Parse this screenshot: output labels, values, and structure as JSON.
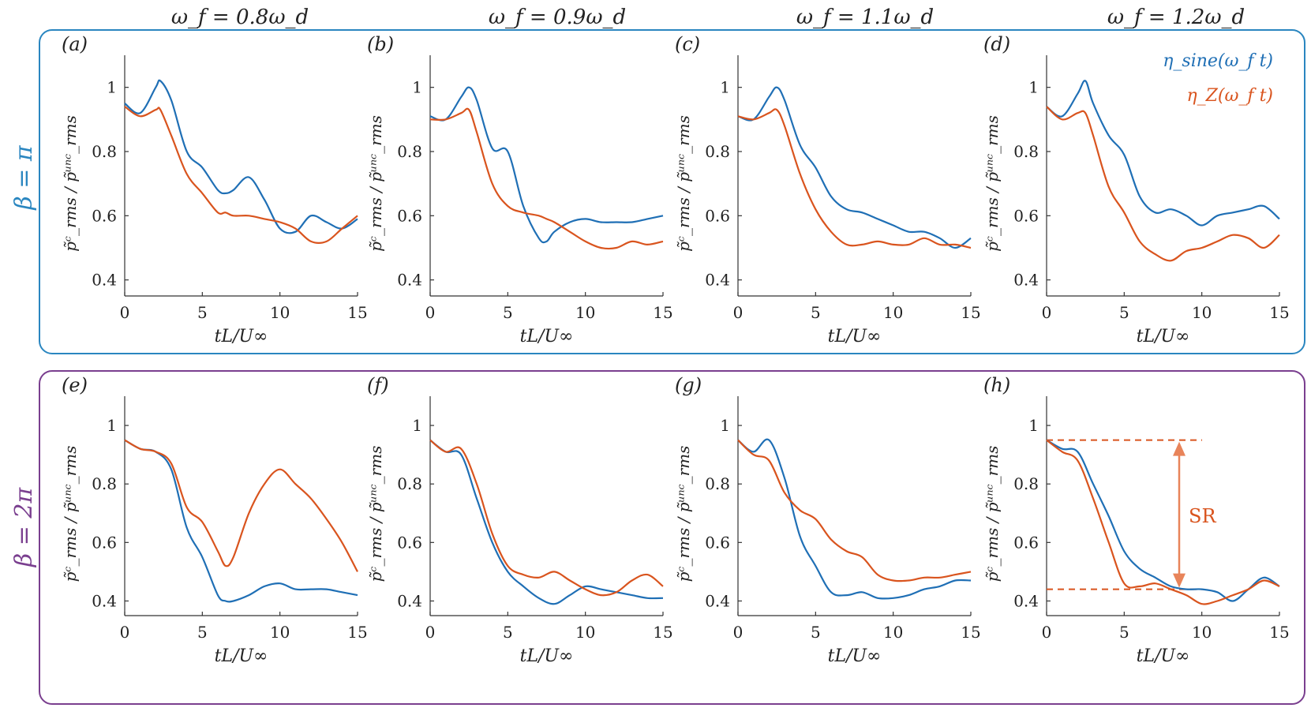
{
  "colors": {
    "row1_box": "#2a86c0",
    "row2_box": "#7a3f8f",
    "sine": "#1f6fb5",
    "zaw": "#d9541e",
    "sr_arrow": "#e8845a",
    "sr_text": "#d9541e"
  },
  "column_headers": [
    "ω_f = 0.8ω_d",
    "ω_f = 0.9ω_d",
    "ω_f = 1.1ω_d",
    "ω_f = 1.2ω_d"
  ],
  "row_labels": [
    "β = π",
    "β = 2π"
  ],
  "axes": {
    "xlabel": "tL/U∞",
    "ylabel": "p̃ᶜ_rms / p̃ᵘⁿᶜ_rms",
    "xlim": [
      0,
      15
    ],
    "ylim": [
      0.35,
      1.1
    ],
    "xticks": [
      "0",
      "5",
      "10",
      "15"
    ],
    "yticks": [
      "0.4",
      "0.6",
      "0.8",
      "1"
    ]
  },
  "legend": {
    "sine": "η_sine(ω_f t)",
    "zaw": "η_Z(ω_f t)",
    "placement": "top-right of panel (d)"
  },
  "annotation": {
    "text": "SR",
    "panel": "h",
    "upper_level": 0.95,
    "lower_level": 0.44
  },
  "chart_data": [
    {
      "type": "line",
      "panel": "(a)",
      "row": "β = π",
      "column": "ω_f = 0.8ω_d",
      "x": [
        0,
        1,
        2,
        2.3,
        3,
        4,
        5,
        6,
        6.5,
        7,
        8,
        9,
        10,
        11,
        12,
        13,
        14,
        15
      ],
      "series": [
        {
          "name": "η_sine(ω_f t)",
          "values": [
            0.95,
            0.92,
            1.0,
            1.02,
            0.96,
            0.8,
            0.75,
            0.68,
            0.67,
            0.68,
            0.72,
            0.65,
            0.56,
            0.55,
            0.6,
            0.58,
            0.56,
            0.59
          ]
        },
        {
          "name": "η_Z(ω_f t)",
          "values": [
            0.94,
            0.91,
            0.93,
            0.93,
            0.85,
            0.73,
            0.67,
            0.61,
            0.61,
            0.6,
            0.6,
            0.59,
            0.58,
            0.56,
            0.52,
            0.52,
            0.56,
            0.6
          ]
        }
      ]
    },
    {
      "type": "line",
      "panel": "(b)",
      "row": "β = π",
      "column": "ω_f = 0.9ω_d",
      "x": [
        0,
        1,
        2,
        2.5,
        3,
        4,
        5,
        6,
        7,
        7.5,
        8,
        9,
        10,
        11,
        12,
        13,
        14,
        15
      ],
      "series": [
        {
          "name": "η_sine(ω_f t)",
          "values": [
            0.91,
            0.9,
            0.97,
            1.0,
            0.96,
            0.81,
            0.8,
            0.63,
            0.53,
            0.52,
            0.55,
            0.58,
            0.59,
            0.58,
            0.58,
            0.58,
            0.59,
            0.6
          ]
        },
        {
          "name": "η_Z(ω_f t)",
          "values": [
            0.9,
            0.9,
            0.92,
            0.93,
            0.86,
            0.7,
            0.63,
            0.61,
            0.6,
            0.59,
            0.58,
            0.55,
            0.52,
            0.5,
            0.5,
            0.52,
            0.51,
            0.52
          ]
        }
      ]
    },
    {
      "type": "line",
      "panel": "(c)",
      "row": "β = π",
      "column": "ω_f = 1.1ω_d",
      "x": [
        0,
        1,
        2,
        2.5,
        3,
        4,
        5,
        6,
        7,
        8,
        9,
        10,
        11,
        12,
        13,
        14,
        15
      ],
      "series": [
        {
          "name": "η_sine(ω_f t)",
          "values": [
            0.91,
            0.9,
            0.97,
            1.0,
            0.96,
            0.82,
            0.75,
            0.66,
            0.62,
            0.61,
            0.59,
            0.57,
            0.55,
            0.55,
            0.53,
            0.5,
            0.53
          ]
        },
        {
          "name": "η_Z(ω_f t)",
          "values": [
            0.91,
            0.9,
            0.92,
            0.93,
            0.88,
            0.73,
            0.62,
            0.55,
            0.51,
            0.51,
            0.52,
            0.51,
            0.51,
            0.53,
            0.51,
            0.51,
            0.5
          ]
        }
      ]
    },
    {
      "type": "line",
      "panel": "(d)",
      "row": "β = π",
      "column": "ω_f = 1.2ω_d",
      "x": [
        0,
        1,
        2,
        2.5,
        3,
        4,
        5,
        6,
        7,
        8,
        9,
        10,
        11,
        12,
        13,
        14,
        15
      ],
      "series": [
        {
          "name": "η_sine(ω_f t)",
          "values": [
            0.94,
            0.91,
            0.98,
            1.02,
            0.95,
            0.85,
            0.79,
            0.66,
            0.61,
            0.62,
            0.6,
            0.57,
            0.6,
            0.61,
            0.62,
            0.63,
            0.59
          ]
        },
        {
          "name": "η_Z(ω_f t)",
          "values": [
            0.94,
            0.9,
            0.92,
            0.92,
            0.85,
            0.69,
            0.61,
            0.52,
            0.48,
            0.46,
            0.49,
            0.5,
            0.52,
            0.54,
            0.53,
            0.5,
            0.54
          ]
        }
      ]
    },
    {
      "type": "line",
      "panel": "(e)",
      "row": "β = 2π",
      "column": "ω_f = 0.8ω_d",
      "x": [
        0,
        1,
        2,
        3,
        4,
        5,
        6,
        6.5,
        7,
        8,
        9,
        10,
        11,
        12,
        13,
        14,
        15
      ],
      "series": [
        {
          "name": "η_sine(ω_f t)",
          "values": [
            0.95,
            0.92,
            0.91,
            0.85,
            0.65,
            0.55,
            0.42,
            0.4,
            0.4,
            0.42,
            0.45,
            0.46,
            0.44,
            0.44,
            0.44,
            0.43,
            0.42
          ]
        },
        {
          "name": "η_Z(ω_f t)",
          "values": [
            0.95,
            0.92,
            0.91,
            0.87,
            0.72,
            0.67,
            0.57,
            0.52,
            0.55,
            0.7,
            0.8,
            0.85,
            0.8,
            0.75,
            0.68,
            0.6,
            0.5
          ]
        }
      ]
    },
    {
      "type": "line",
      "panel": "(f)",
      "row": "β = 2π",
      "column": "ω_f = 0.9ω_d",
      "x": [
        0,
        1,
        2,
        3,
        4,
        5,
        6,
        7,
        8,
        9,
        10,
        11,
        12,
        13,
        14,
        15
      ],
      "series": [
        {
          "name": "η_sine(ω_f t)",
          "values": [
            0.95,
            0.91,
            0.9,
            0.75,
            0.6,
            0.5,
            0.45,
            0.41,
            0.39,
            0.42,
            0.45,
            0.44,
            0.43,
            0.42,
            0.41,
            0.41
          ]
        },
        {
          "name": "η_Z(ω_f t)",
          "values": [
            0.95,
            0.91,
            0.92,
            0.8,
            0.63,
            0.52,
            0.49,
            0.48,
            0.5,
            0.47,
            0.44,
            0.42,
            0.43,
            0.47,
            0.49,
            0.45
          ]
        }
      ]
    },
    {
      "type": "line",
      "panel": "(g)",
      "row": "β = 2π",
      "column": "ω_f = 1.1ω_d",
      "x": [
        0,
        1,
        2,
        3,
        4,
        5,
        6,
        7,
        8,
        9,
        10,
        11,
        12,
        13,
        14,
        15
      ],
      "series": [
        {
          "name": "η_sine(ω_f t)",
          "values": [
            0.95,
            0.91,
            0.95,
            0.82,
            0.62,
            0.52,
            0.43,
            0.42,
            0.43,
            0.41,
            0.41,
            0.42,
            0.44,
            0.45,
            0.47,
            0.47
          ]
        },
        {
          "name": "η_Z(ω_f t)",
          "values": [
            0.95,
            0.9,
            0.88,
            0.77,
            0.71,
            0.68,
            0.61,
            0.57,
            0.55,
            0.49,
            0.47,
            0.47,
            0.48,
            0.48,
            0.49,
            0.5
          ]
        }
      ]
    },
    {
      "type": "line",
      "panel": "(h)",
      "row": "β = 2π",
      "column": "ω_f = 1.2ω_d",
      "x": [
        0,
        1,
        2,
        3,
        4,
        5,
        6,
        7,
        8,
        9,
        10,
        11,
        12,
        13,
        14,
        15
      ],
      "series": [
        {
          "name": "η_sine(ω_f t)",
          "values": [
            0.95,
            0.92,
            0.91,
            0.8,
            0.69,
            0.57,
            0.51,
            0.48,
            0.45,
            0.44,
            0.44,
            0.43,
            0.4,
            0.44,
            0.48,
            0.45
          ]
        },
        {
          "name": "η_Z(ω_f t)",
          "values": [
            0.95,
            0.91,
            0.88,
            0.75,
            0.6,
            0.46,
            0.45,
            0.46,
            0.44,
            0.42,
            0.39,
            0.4,
            0.42,
            0.44,
            0.47,
            0.45
          ]
        }
      ]
    }
  ]
}
